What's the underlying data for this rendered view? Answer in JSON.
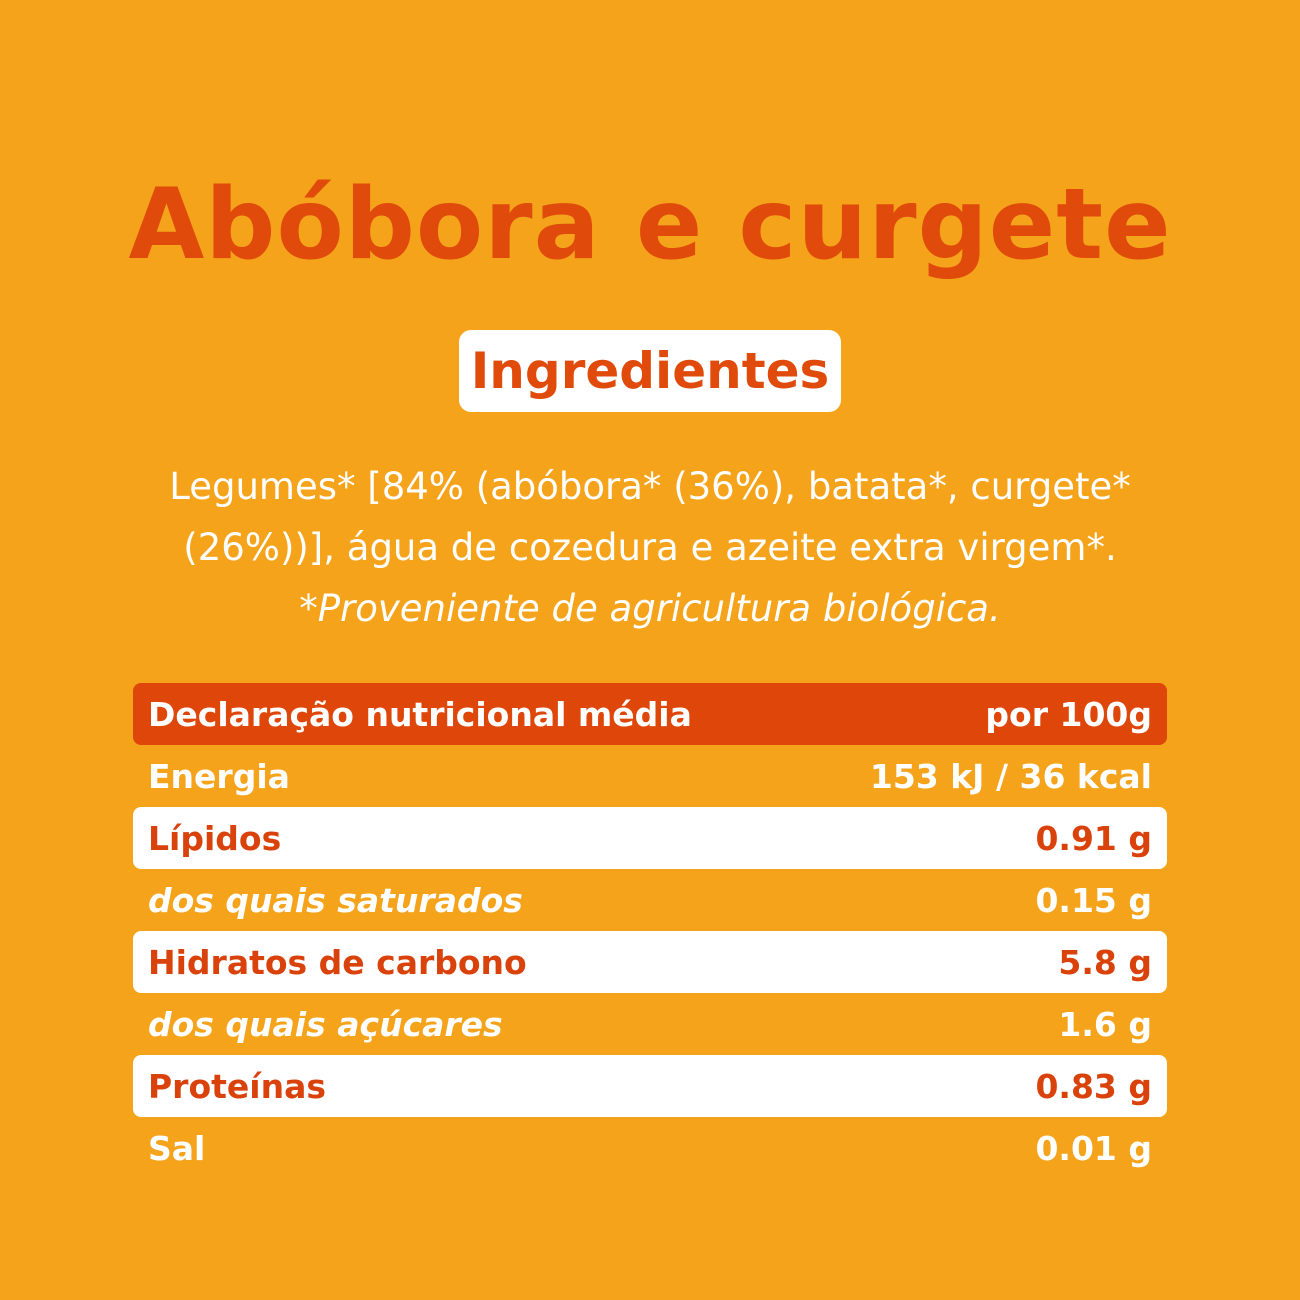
{
  "title": "Abóbora e curgete",
  "ingredients_heading": "Ingredientes",
  "ingredients_lines": [
    "Legumes* [84% (abóbora* (36%), batata*, curgete*",
    "(26%))], água de cozedura e azeite extra virgem*."
  ],
  "ingredients_note": "*Proveniente de agricultura biológica.",
  "nutrition": {
    "header_label": "Declaração nutricional média",
    "header_value": "por 100g",
    "rows": [
      {
        "label": "Energia",
        "value": "153 kJ / 36 kcal"
      },
      {
        "label": "Lípidos",
        "value": "0.91 g"
      },
      {
        "label": "dos quais saturados",
        "value": "0.15 g"
      },
      {
        "label": "Hidratos de carbono",
        "value": "5.8 g"
      },
      {
        "label": "dos quais açúcares",
        "value": "1.6 g"
      },
      {
        "label": "Proteínas",
        "value": "0.83 g"
      },
      {
        "label": "Sal",
        "value": "0.01 g"
      }
    ]
  },
  "colors": {
    "background": "#f4a31b",
    "accent": "#e04a0a",
    "highlight_row": "#ffffff"
  }
}
